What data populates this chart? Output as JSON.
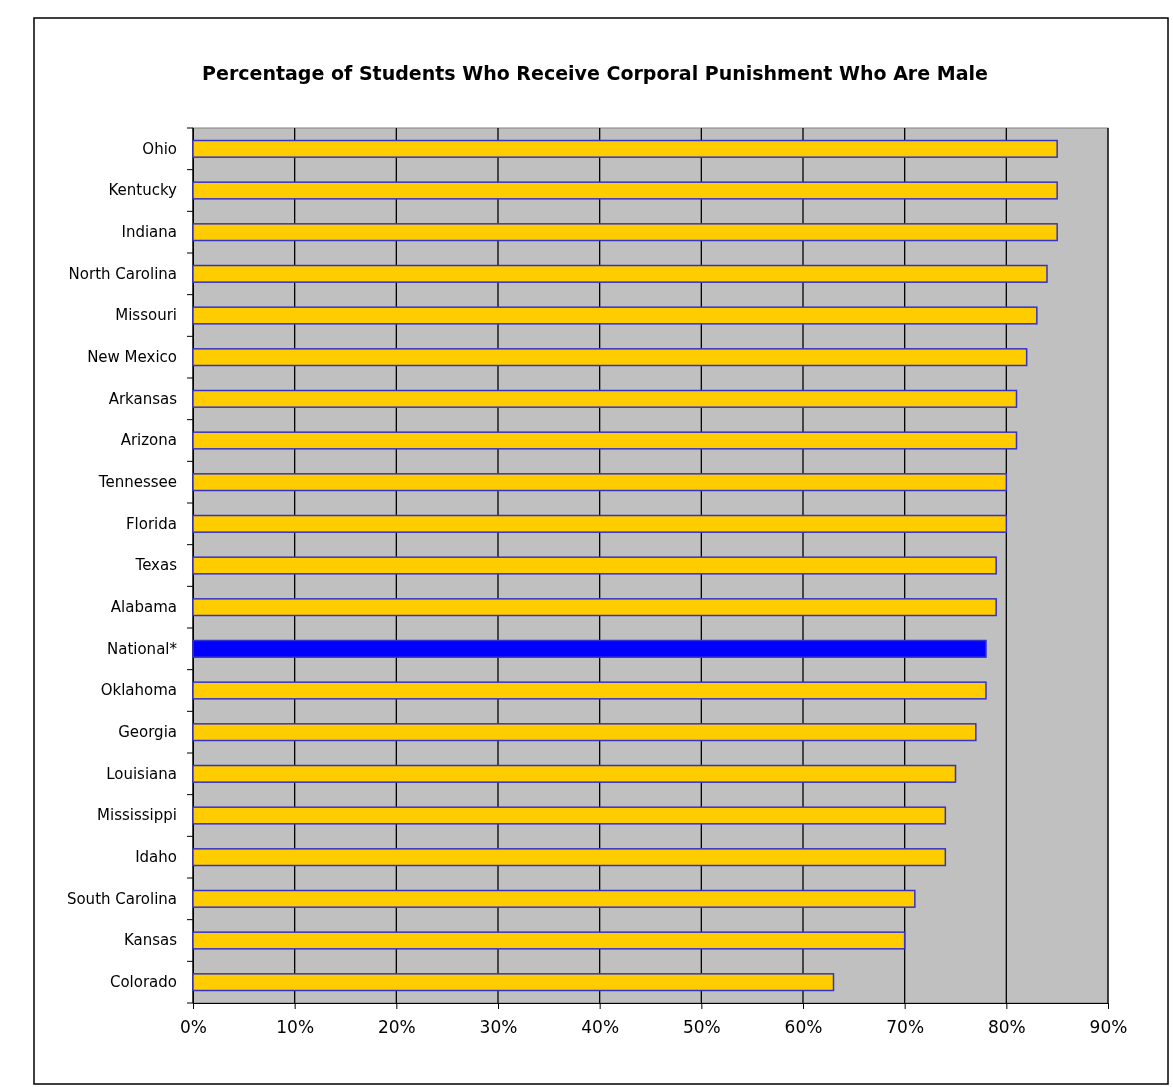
{
  "chart_data": {
    "type": "bar",
    "orientation": "horizontal",
    "title": "Percentage of Students Who Receive Corporal Punishment Who Are Male",
    "categories": [
      "Ohio",
      "Kentucky",
      "Indiana",
      "North Carolina",
      "Missouri",
      "New Mexico",
      "Arkansas",
      "Arizona",
      "Tennessee",
      "Florida",
      "Texas",
      "Alabama",
      "National*",
      "Oklahoma",
      "Georgia",
      "Louisiana",
      "Mississippi",
      "Idaho",
      "South Carolina",
      "Kansas",
      "Colorado"
    ],
    "values": [
      85,
      85,
      85,
      84,
      83,
      82,
      81,
      81,
      80,
      80,
      79,
      79,
      78,
      78,
      77,
      75,
      74,
      74,
      71,
      70,
      63
    ],
    "colors": [
      "#ffcc00",
      "#ffcc00",
      "#ffcc00",
      "#ffcc00",
      "#ffcc00",
      "#ffcc00",
      "#ffcc00",
      "#ffcc00",
      "#ffcc00",
      "#ffcc00",
      "#ffcc00",
      "#ffcc00",
      "#0000ff",
      "#ffcc00",
      "#ffcc00",
      "#ffcc00",
      "#ffcc00",
      "#ffcc00",
      "#ffcc00",
      "#ffcc00",
      "#ffcc00"
    ],
    "xlim": [
      0,
      90
    ],
    "xticks": [
      {
        "value": 0,
        "label": "0%"
      },
      {
        "value": 10,
        "label": "10%"
      },
      {
        "value": 20,
        "label": "20%"
      },
      {
        "value": 30,
        "label": "30%"
      },
      {
        "value": 40,
        "label": "40%"
      },
      {
        "value": 50,
        "label": "50%"
      },
      {
        "value": 60,
        "label": "60%"
      },
      {
        "value": 70,
        "label": "70%"
      },
      {
        "value": 80,
        "label": "80%"
      },
      {
        "value": 90,
        "label": "90%"
      }
    ],
    "grid": "x"
  }
}
